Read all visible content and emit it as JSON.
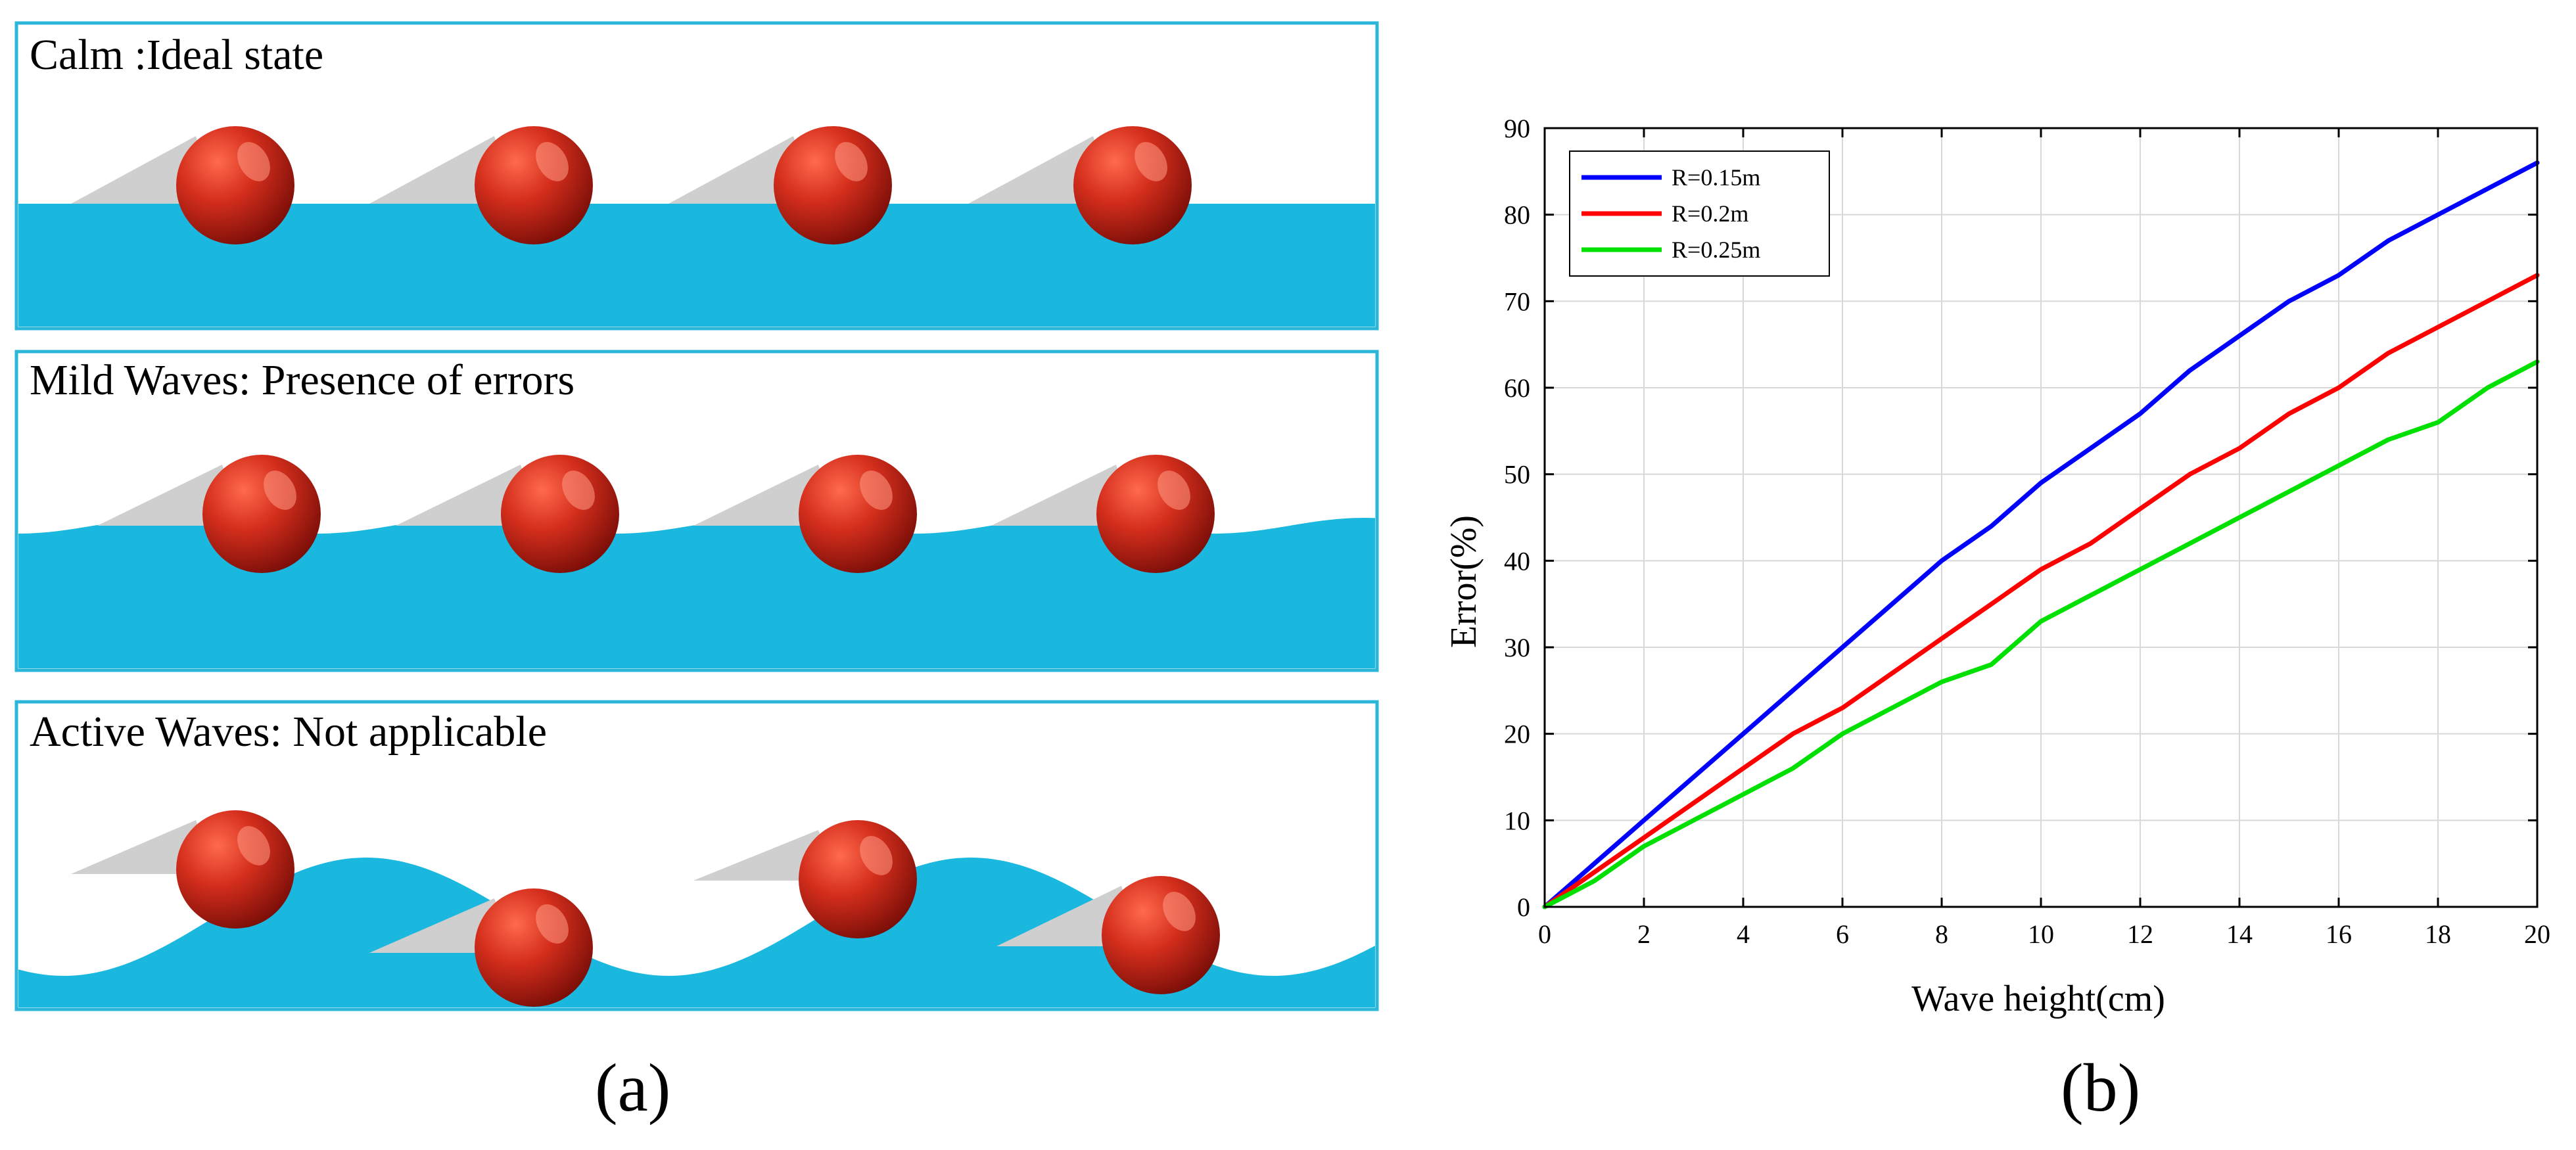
{
  "colors": {
    "frame": "#2ab5d9",
    "water": "#1ab8df",
    "buoy_light": "#ff6a4d",
    "buoy_mid": "#d42e1c",
    "buoy_dark": "#7a0e08",
    "shadow": "#cfcfcf",
    "grid": "#d8d8d8",
    "axis": "#000000"
  },
  "panel_a": {
    "caption": "(a)",
    "scenes": [
      {
        "title": "Calm :Ideal state"
      },
      {
        "title": "Mild Waves: Presence of errors"
      },
      {
        "title": "Active Waves: Not applicable"
      }
    ]
  },
  "panel_b": {
    "caption": "(b)"
  },
  "chart_data": {
    "type": "line",
    "title": "",
    "xlabel": "Wave height(cm)",
    "ylabel": "Error(%)",
    "xlim": [
      0,
      20
    ],
    "ylim": [
      0,
      90
    ],
    "xticks": [
      0,
      2,
      4,
      6,
      8,
      10,
      12,
      14,
      16,
      18,
      20
    ],
    "yticks": [
      0,
      10,
      20,
      30,
      40,
      50,
      60,
      70,
      80,
      90
    ],
    "grid": true,
    "legend_position": "top-left",
    "x": [
      0,
      1,
      2,
      3,
      4,
      5,
      6,
      7,
      8,
      9,
      10,
      11,
      12,
      13,
      14,
      15,
      16,
      17,
      18,
      19,
      20
    ],
    "series": [
      {
        "name": "R=0.15m",
        "color": "#0000ff",
        "values": [
          0,
          5,
          10,
          15,
          20,
          25,
          30,
          35,
          40,
          44,
          49,
          53,
          57,
          62,
          66,
          70,
          73,
          77,
          80,
          83,
          86
        ]
      },
      {
        "name": "R=0.2m",
        "color": "#ff0000",
        "values": [
          0,
          4,
          8,
          12,
          16,
          20,
          23,
          27,
          31,
          35,
          39,
          42,
          46,
          50,
          53,
          57,
          60,
          64,
          67,
          70,
          73
        ]
      },
      {
        "name": "R=0.25m",
        "color": "#00e000",
        "values": [
          0,
          3,
          7,
          10,
          13,
          16,
          20,
          23,
          26,
          28,
          33,
          36,
          39,
          42,
          45,
          48,
          51,
          54,
          56,
          60,
          63
        ]
      }
    ]
  }
}
